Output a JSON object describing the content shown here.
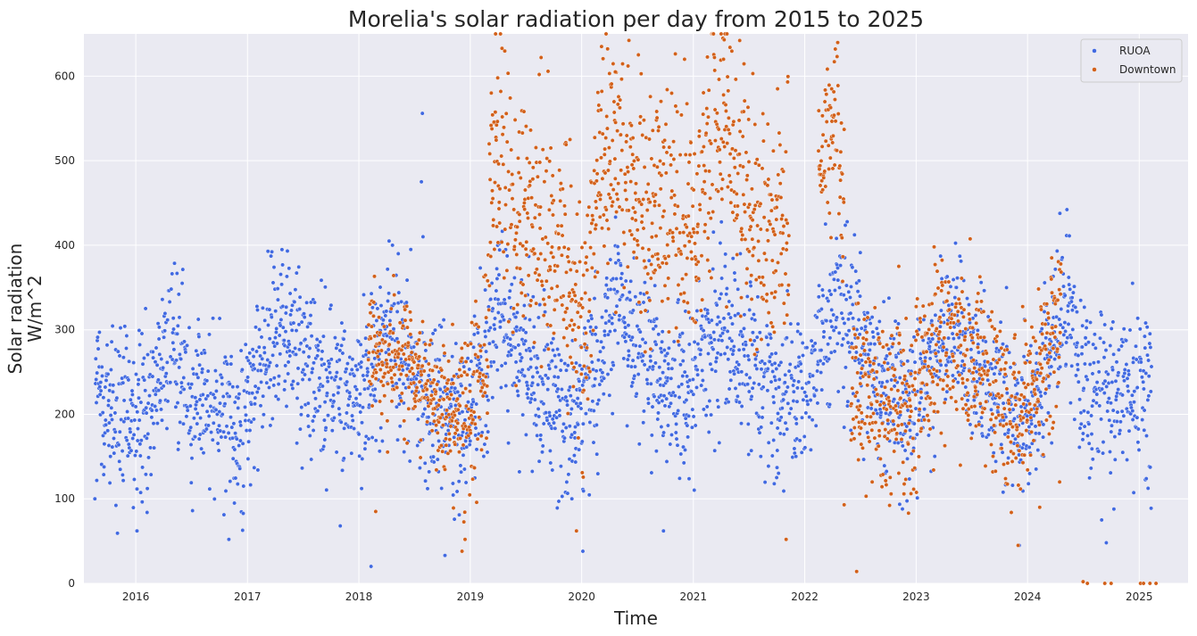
{
  "chart_data": {
    "type": "scatter",
    "title": "Morelia's solar radiation per day from 2015 to 2025",
    "xlabel": "Time",
    "ylabel_lines": [
      "Solar radiation",
      "W/m^2"
    ],
    "xlim": [
      "2015-07-15",
      "2025-06-10"
    ],
    "ylim": [
      0,
      650
    ],
    "x_ticks": [
      "2016",
      "2017",
      "2018",
      "2019",
      "2020",
      "2021",
      "2022",
      "2023",
      "2024",
      "2025"
    ],
    "y_ticks": [
      0,
      100,
      200,
      300,
      400,
      500,
      600
    ],
    "grid": true,
    "legend_position": "top-right",
    "series": [
      {
        "name": "RUOA",
        "color": "#4169e1",
        "date_range": [
          "2015-08-20",
          "2025-02-10"
        ],
        "points_per_day": 1,
        "seasonal_profile": [
          [
            "2015-08-20",
            225
          ],
          [
            "2015-10-15",
            210
          ],
          [
            "2016-01-01",
            185
          ],
          [
            "2016-04-20",
            295
          ],
          [
            "2016-07-01",
            225
          ],
          [
            "2016-12-01",
            195
          ],
          [
            "2017-04-15",
            315
          ],
          [
            "2017-08-01",
            255
          ],
          [
            "2017-12-01",
            210
          ],
          [
            "2018-04-10",
            305
          ],
          [
            "2018-08-15",
            220
          ],
          [
            "2018-12-15",
            205
          ],
          [
            "2019-04-10",
            320
          ],
          [
            "2019-08-15",
            240
          ],
          [
            "2019-12-10",
            200
          ],
          [
            "2020-04-20",
            335
          ],
          [
            "2020-08-15",
            255
          ],
          [
            "2020-12-10",
            220
          ],
          [
            "2021-04-10",
            325
          ],
          [
            "2021-08-15",
            235
          ],
          [
            "2021-12-20",
            230
          ],
          [
            "2022-04-20",
            335
          ],
          [
            "2022-08-15",
            245
          ],
          [
            "2022-12-10",
            210
          ],
          [
            "2023-04-15",
            315
          ],
          [
            "2023-08-15",
            255
          ],
          [
            "2023-12-10",
            180
          ],
          [
            "2024-05-01",
            330
          ],
          [
            "2024-08-15",
            225
          ],
          [
            "2024-12-15",
            225
          ],
          [
            "2025-02-10",
            225
          ]
        ],
        "spread": 45,
        "notable_points": [
          [
            "2018-07-28",
            556
          ],
          [
            "2018-07-25",
            475
          ],
          [
            "2018-07-30",
            410
          ],
          [
            "2018-06-20",
            395
          ],
          [
            "2018-05-10",
            390
          ],
          [
            "2018-02-10",
            20
          ],
          [
            "2017-11-01",
            68
          ],
          [
            "2015-08-20",
            100
          ],
          [
            "2016-01-05",
            62
          ],
          [
            "2016-11-01",
            52
          ],
          [
            "2018-10-10",
            33
          ],
          [
            "2019-11-30",
            100
          ],
          [
            "2020-01-05",
            38
          ],
          [
            "2020-09-25",
            62
          ],
          [
            "2023-12-05",
            45
          ],
          [
            "2024-09-15",
            48
          ],
          [
            "2024-12-10",
            355
          ],
          [
            "2022-03-10",
            425
          ],
          [
            "2022-04-15",
            408
          ]
        ]
      },
      {
        "name": "Downtown",
        "color": "#d2601a",
        "segments": [
          {
            "range": [
              "2018-02-01",
              "2019-01-05"
            ],
            "profile": [
              [
                "2018-02-01",
                285
              ],
              [
                "2018-06-01",
                265
              ],
              [
                "2018-09-15",
                215
              ],
              [
                "2019-01-05",
                210
              ]
            ],
            "spread": 35
          },
          {
            "range": [
              "2019-01-05",
              "2019-12-31"
            ],
            "profile": [
              [
                "2019-01-05",
                230
              ],
              [
                "2019-02-25",
                270
              ],
              [
                "2019-03-15",
                540
              ],
              [
                "2019-05-01",
                450
              ],
              [
                "2019-08-01",
                420
              ],
              [
                "2019-11-01",
                400
              ],
              [
                "2019-12-20",
                300
              ]
            ],
            "spread": 70
          },
          {
            "range": [
              "2019-12-31",
              "2021-03-01"
            ],
            "profile": [
              [
                "2019-12-31",
                240
              ],
              [
                "2020-02-15",
                470
              ],
              [
                "2020-04-15",
                520
              ],
              [
                "2020-08-01",
                440
              ],
              [
                "2020-11-01",
                440
              ],
              [
                "2021-01-01",
                420
              ],
              [
                "2021-03-01",
                520
              ]
            ],
            "spread": 70
          },
          {
            "range": [
              "2021-03-01",
              "2021-11-10"
            ],
            "profile": [
              [
                "2021-03-01",
                560
              ],
              [
                "2021-05-01",
                530
              ],
              [
                "2021-08-01",
                420
              ],
              [
                "2021-11-01",
                430
              ]
            ],
            "spread": 75
          },
          {
            "range": [
              "2022-02-15",
              "2022-05-10"
            ],
            "profile": [
              [
                "2022-02-15",
                510
              ],
              [
                "2022-04-15",
                545
              ],
              [
                "2022-05-10",
                480
              ]
            ],
            "spread": 45
          },
          {
            "range": [
              "2022-06-01",
              "2024-04-20"
            ],
            "profile": [
              [
                "2022-06-01",
                240
              ],
              [
                "2022-10-01",
                210
              ],
              [
                "2022-12-20",
                210
              ],
              [
                "2023-04-15",
                300
              ],
              [
                "2023-08-15",
                245
              ],
              [
                "2023-12-01",
                185
              ],
              [
                "2024-02-15",
                260
              ],
              [
                "2024-04-15",
                310
              ]
            ],
            "spread": 50
          }
        ],
        "notable_points": [
          [
            "2018-02-25",
            85
          ],
          [
            "2019-04-01",
            598
          ],
          [
            "2019-08-15",
            602
          ],
          [
            "2020-06-01",
            612
          ],
          [
            "2020-04-20",
            605
          ],
          [
            "2021-04-10",
            620
          ],
          [
            "2021-07-15",
            603
          ],
          [
            "2022-03-30",
            585
          ],
          [
            "2022-06-20",
            14
          ],
          [
            "2022-11-05",
            375
          ],
          [
            "2023-03-01",
            398
          ],
          [
            "2024-03-20",
            385
          ],
          [
            "2024-07-01",
            2
          ],
          [
            "2024-09-10",
            0
          ],
          [
            "2024-10-01",
            0
          ],
          [
            "2025-01-05",
            0
          ],
          [
            "2025-01-15",
            0
          ],
          [
            "2025-02-05",
            0
          ],
          [
            "2025-02-25",
            0
          ],
          [
            "2024-07-15",
            0
          ],
          [
            "2021-11-01",
            52
          ],
          [
            "2018-12-05",
            38
          ],
          [
            "2018-12-15",
            52
          ],
          [
            "2019-12-15",
            62
          ],
          [
            "2024-02-10",
            90
          ],
          [
            "2024-04-15",
            120
          ],
          [
            "2023-12-01",
            45
          ],
          [
            "2022-05-10",
            93
          ]
        ]
      }
    ]
  }
}
